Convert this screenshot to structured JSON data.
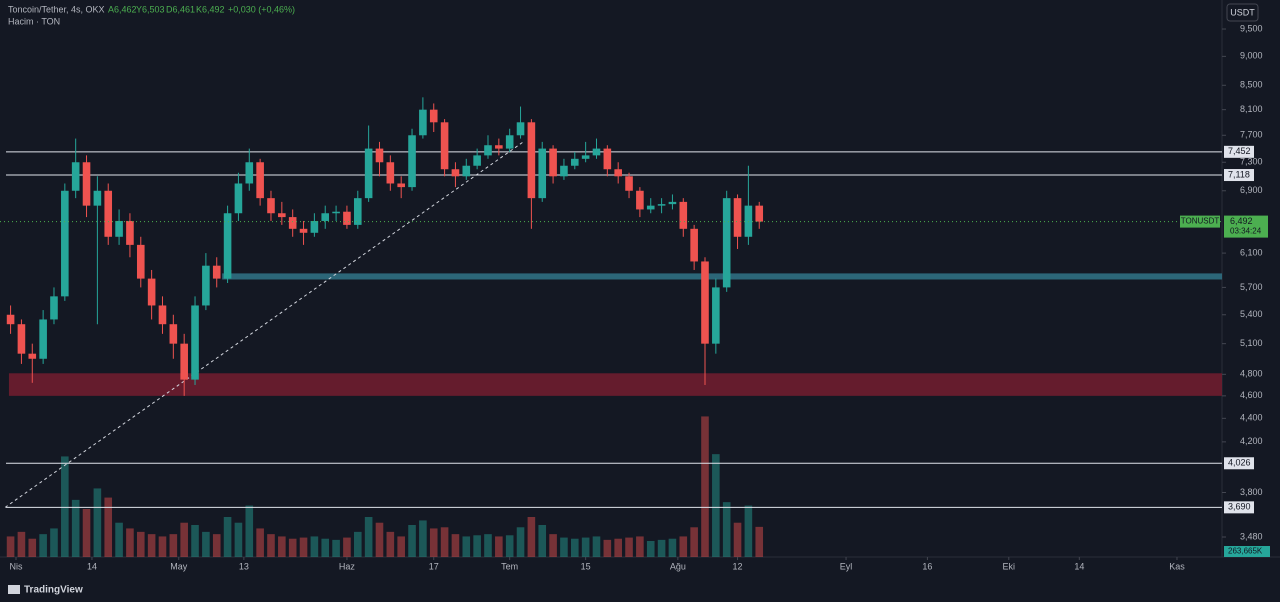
{
  "chart_data": {
    "type": "candlestick",
    "title": "Toncoin/Tether, 4s, OKX",
    "ohlc_labels": [
      "A6,462",
      "Y6,503",
      "D6,461",
      "K6,492"
    ],
    "change": "+0,030 (+0,46%)",
    "volume_title": "Hacim · TON",
    "currency": "USDT",
    "symbol": "TONUSDT",
    "countdown": "03:34:24",
    "brand": "TradingView",
    "log_scale": true,
    "grid": false,
    "up_color": "#26a69a",
    "down_color": "#ef5350",
    "xlim": [
      -2.95,
      222.3
    ],
    "ylim": [
      3345,
      10061
    ],
    "volume_ylim": [
      0,
      1400000
    ],
    "xticks": [
      {
        "value": 0,
        "label": "Nis"
      },
      14,
      {
        "value": 30,
        "label": "May"
      },
      {
        "value": 42,
        "label": "13"
      },
      {
        "value": 61,
        "label": "Haz"
      },
      {
        "value": 77,
        "label": "17"
      },
      {
        "value": 91,
        "label": "Tem"
      },
      {
        "value": 105,
        "label": "15"
      },
      {
        "value": 122,
        "label": "Ağu"
      },
      {
        "value": 133,
        "label": "12"
      },
      {
        "value": 153,
        "label": "Eyl"
      },
      {
        "value": 168,
        "label": "16"
      },
      {
        "value": 183,
        "label": "Eki"
      },
      {
        "value": 196,
        "label": "14"
      },
      {
        "value": 214,
        "label": "Kas"
      }
    ],
    "yticks": [
      {
        "value": 9500,
        "label": "9,500"
      },
      {
        "value": 9000,
        "label": "9,000"
      },
      {
        "value": 8500,
        "label": "8,500"
      },
      {
        "value": 8100,
        "label": "8,100"
      },
      {
        "value": 7700,
        "label": "7,700"
      },
      {
        "value": 7300,
        "label": "7,300"
      },
      {
        "value": 6900,
        "label": "6,900"
      },
      {
        "value": 6100,
        "label": "6,100"
      },
      {
        "value": 5700,
        "label": "5,700"
      },
      {
        "value": 5400,
        "label": "5,400"
      },
      {
        "value": 5100,
        "label": "5,100"
      },
      {
        "value": 4800,
        "label": "4,800"
      },
      {
        "value": 4600,
        "label": "4,600"
      },
      {
        "value": 4400,
        "label": "4,400"
      },
      {
        "value": 4200,
        "label": "4,200"
      },
      {
        "value": 3800,
        "label": "3,800"
      },
      {
        "value": 3480,
        "label": "3,480"
      }
    ],
    "hlines": [
      {
        "value": 7452,
        "label": "7,452"
      },
      {
        "value": 7118,
        "label": "7,118"
      },
      {
        "value": 4026,
        "label": "4,026"
      },
      {
        "value": 3690,
        "label": "3,690"
      }
    ],
    "zones": [
      {
        "x0": 38,
        "from": 5790,
        "to": 5860,
        "color": "#2f6f82"
      },
      {
        "x0": -1.3,
        "from": 4600,
        "to": 4810,
        "color": "#6e1d2f"
      }
    ],
    "trendline": {
      "x": [
        -2,
        93.5
      ],
      "y": [
        3690,
        7600
      ]
    },
    "x": [
      -1,
      1,
      3,
      5,
      7,
      9,
      11,
      13,
      15,
      17,
      19,
      21,
      23,
      25,
      27,
      29,
      31,
      33,
      35,
      37,
      39,
      41,
      43,
      45,
      47,
      49,
      51,
      53,
      55,
      57,
      59,
      61,
      63,
      65,
      67,
      69,
      71,
      73,
      75,
      77,
      79,
      81,
      83,
      85,
      87,
      89,
      91,
      93,
      95,
      97,
      99,
      101,
      103,
      105,
      107,
      109,
      111,
      113,
      115,
      117,
      119,
      121,
      123,
      125,
      127,
      129,
      131,
      133,
      135,
      137
    ],
    "open": [
      5400,
      5300,
      5000,
      4950,
      5350,
      5600,
      6900,
      7300,
      6700,
      6900,
      6300,
      6500,
      6200,
      5800,
      5500,
      5300,
      5100,
      4750,
      5500,
      5950,
      5800,
      6600,
      7000,
      7300,
      6800,
      6600,
      6550,
      6400,
      6350,
      6500,
      6600,
      6620,
      6450,
      6800,
      7500,
      7300,
      7000,
      6950,
      7700,
      8100,
      7900,
      7200,
      7100,
      7250,
      7400,
      7550,
      7500,
      7700,
      7900,
      6800,
      7500,
      7100,
      7250,
      7350,
      7400,
      7500,
      7200,
      7100,
      6900,
      6650,
      6700,
      6720,
      6750,
      6400,
      6000,
      5100,
      5700,
      6800,
      6300,
      6700
    ],
    "high": [
      5500,
      5350,
      5100,
      5450,
      5700,
      7000,
      7650,
      7400,
      7100,
      7000,
      6650,
      6600,
      6300,
      5900,
      5600,
      5400,
      5200,
      5600,
      6100,
      6050,
      6700,
      7150,
      7500,
      7350,
      6900,
      6750,
      6650,
      6500,
      6600,
      6700,
      6700,
      6700,
      6900,
      7850,
      7600,
      7400,
      7100,
      7800,
      8300,
      8200,
      7950,
      7300,
      7350,
      7500,
      7700,
      7650,
      7800,
      8150,
      7950,
      7600,
      7550,
      7350,
      7450,
      7600,
      7650,
      7550,
      7300,
      7150,
      6950,
      6800,
      6800,
      6850,
      6800,
      6450,
      6050,
      5800,
      6900,
      6850,
      7250,
      6750
    ],
    "low": [
      5200,
      4900,
      4720,
      4900,
      5300,
      5550,
      6800,
      6550,
      5300,
      6200,
      6200,
      6050,
      5700,
      5350,
      5200,
      4950,
      4600,
      4700,
      5450,
      5700,
      5750,
      6500,
      6900,
      6700,
      6500,
      6450,
      6300,
      6200,
      6300,
      6400,
      6500,
      6400,
      6400,
      6750,
      7100,
      6900,
      6800,
      6900,
      7650,
      7750,
      7100,
      6950,
      7050,
      7200,
      7350,
      7400,
      7450,
      7650,
      6400,
      6750,
      7000,
      7050,
      7200,
      7300,
      7350,
      7100,
      7000,
      6800,
      6550,
      6600,
      6600,
      6650,
      6300,
      5900,
      4700,
      5000,
      5650,
      6150,
      6200,
      6400
    ],
    "close": [
      5300,
      5000,
      4950,
      5350,
      5600,
      6900,
      7300,
      6700,
      6900,
      6300,
      6500,
      6200,
      5800,
      5500,
      5300,
      5100,
      4750,
      5500,
      5950,
      5800,
      6600,
      7000,
      7300,
      6800,
      6600,
      6550,
      6400,
      6350,
      6500,
      6600,
      6620,
      6450,
      6800,
      7500,
      7300,
      7000,
      6950,
      7700,
      8100,
      7900,
      7200,
      7100,
      7250,
      7400,
      7550,
      7500,
      7700,
      7900,
      6800,
      7500,
      7100,
      7250,
      7350,
      7400,
      7500,
      7200,
      7100,
      6900,
      6650,
      6700,
      6720,
      6750,
      6400,
      6000,
      5100,
      5700,
      6800,
      6300,
      6700,
      6492
    ],
    "close_labels": [
      null,
      null,
      null,
      null,
      null,
      null,
      null,
      null,
      null,
      null,
      null,
      null,
      null,
      null,
      null,
      null,
      null,
      null,
      null,
      null,
      null,
      null,
      null,
      null,
      null,
      null,
      null,
      null,
      null,
      null,
      null,
      null,
      null,
      null,
      null,
      null,
      null,
      null,
      null,
      null,
      null,
      null,
      null,
      null,
      null,
      null,
      null,
      null,
      null,
      null,
      null,
      null,
      null,
      null,
      null,
      null,
      null,
      null,
      null,
      null,
      null,
      null,
      null,
      null,
      null,
      null,
      null,
      null,
      null,
      "6,492"
    ],
    "volume": [
      180000,
      220000,
      160000,
      200000,
      250000,
      880000,
      500000,
      420000,
      600000,
      520000,
      300000,
      250000,
      220000,
      200000,
      180000,
      200000,
      300000,
      280000,
      220000,
      200000,
      350000,
      300000,
      450000,
      250000,
      200000,
      180000,
      160000,
      170000,
      180000,
      160000,
      150000,
      170000,
      220000,
      350000,
      300000,
      220000,
      180000,
      280000,
      320000,
      250000,
      260000,
      200000,
      180000,
      190000,
      200000,
      180000,
      190000,
      260000,
      350000,
      280000,
      200000,
      170000,
      160000,
      170000,
      180000,
      150000,
      160000,
      170000,
      180000,
      140000,
      150000,
      160000,
      180000,
      260000,
      1230000,
      900000,
      480000,
      300000,
      450000,
      263665
    ],
    "volume_labels": [
      null,
      null,
      null,
      null,
      null,
      null,
      null,
      null,
      null,
      null,
      null,
      null,
      null,
      null,
      null,
      null,
      null,
      null,
      null,
      null,
      null,
      null,
      null,
      null,
      null,
      null,
      null,
      null,
      null,
      null,
      null,
      null,
      null,
      null,
      null,
      null,
      null,
      null,
      null,
      null,
      null,
      null,
      null,
      null,
      null,
      null,
      null,
      null,
      null,
      null,
      null,
      null,
      null,
      null,
      null,
      null,
      null,
      null,
      null,
      null,
      null,
      null,
      null,
      null,
      null,
      null,
      null,
      null,
      null,
      "263,665K"
    ]
  }
}
